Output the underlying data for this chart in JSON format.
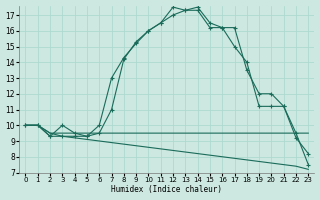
{
  "background_color": "#cce8e0",
  "grid_color": "#a8d8cc",
  "line_color": "#1a6b5a",
  "xlim": [
    -0.5,
    23.5
  ],
  "ylim": [
    7,
    17.6
  ],
  "xticks": [
    0,
    1,
    2,
    3,
    4,
    5,
    6,
    7,
    8,
    9,
    10,
    11,
    12,
    13,
    14,
    15,
    16,
    17,
    18,
    19,
    20,
    21,
    22,
    23
  ],
  "yticks": [
    7,
    8,
    9,
    10,
    11,
    12,
    13,
    14,
    15,
    16,
    17
  ],
  "xlabel": "Humidex (Indice chaleur)",
  "line1_nomarker": {
    "x": [
      0,
      1,
      2,
      3,
      4,
      5,
      6,
      7,
      8,
      9,
      10,
      11,
      12,
      13,
      14,
      15,
      16,
      17,
      18,
      19,
      20,
      21,
      22,
      23
    ],
    "y": [
      10,
      10,
      9.5,
      9.5,
      9.5,
      9.5,
      9.5,
      9.5,
      9.5,
      9.5,
      9.5,
      9.5,
      9.5,
      9.5,
      9.5,
      9.5,
      9.5,
      9.5,
      9.5,
      9.5,
      9.5,
      9.5,
      9.5,
      9.5
    ]
  },
  "line2_nomarker": {
    "x": [
      0,
      1,
      2,
      3,
      4,
      5,
      6,
      7,
      8,
      9,
      10,
      11,
      12,
      13,
      14,
      15,
      16,
      17,
      18,
      19,
      20,
      21,
      22,
      23
    ],
    "y": [
      10,
      10,
      9.5,
      9.3,
      9.2,
      9.1,
      9.0,
      8.9,
      8.8,
      8.7,
      8.6,
      8.5,
      8.4,
      8.3,
      8.2,
      8.1,
      8.0,
      7.9,
      7.8,
      7.7,
      7.6,
      7.5,
      7.4,
      7.2
    ]
  },
  "line3_marker": {
    "x": [
      0,
      1,
      2,
      3,
      4,
      5,
      6,
      7,
      8,
      9,
      10,
      11,
      12,
      13,
      14,
      15,
      16,
      17,
      18,
      19,
      20,
      21,
      22,
      23
    ],
    "y": [
      10,
      10,
      9.3,
      9.3,
      9.3,
      9.3,
      10,
      13.0,
      14.3,
      15.2,
      16.0,
      16.5,
      17.0,
      17.3,
      17.3,
      16.2,
      16.2,
      15.0,
      14.0,
      11.2,
      11.2,
      11.2,
      9.2,
      8.2
    ]
  },
  "line4_marker": {
    "x": [
      0,
      1,
      2,
      3,
      4,
      5,
      6,
      7,
      8,
      9,
      10,
      11,
      12,
      13,
      14,
      15,
      16,
      17,
      18,
      19,
      20,
      21,
      22,
      23
    ],
    "y": [
      10,
      10,
      9.3,
      10.0,
      9.5,
      9.3,
      9.5,
      11.0,
      14.2,
      15.3,
      16.0,
      16.5,
      17.5,
      17.3,
      17.5,
      16.5,
      16.2,
      16.2,
      13.5,
      12.0,
      12.0,
      11.2,
      9.5,
      7.5
    ]
  }
}
